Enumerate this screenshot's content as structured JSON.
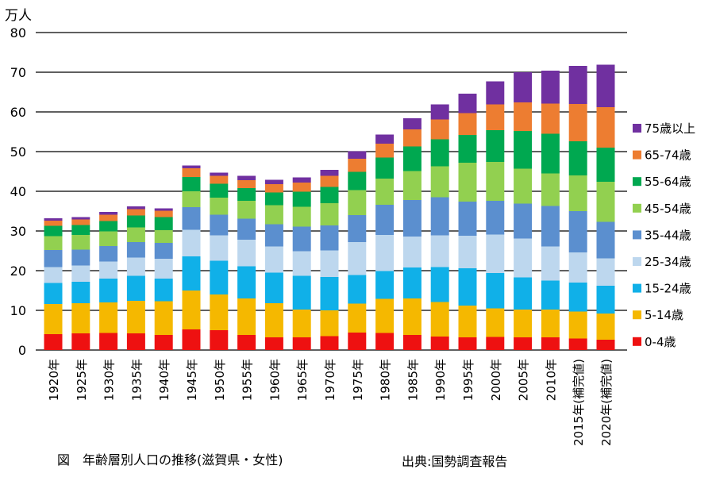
{
  "chart_data": {
    "type": "bar",
    "stacked": true,
    "title": "",
    "ylabel": "万人",
    "xlabel": "",
    "ylim": [
      0,
      80
    ],
    "yticks": [
      0,
      10,
      20,
      30,
      40,
      50,
      60,
      70,
      80
    ],
    "grid": true,
    "legend_position": "right",
    "categories": [
      "1920年",
      "1925年",
      "1930年",
      "1935年",
      "1940年",
      "1945年",
      "1950年",
      "1955年",
      "1960年",
      "1965年",
      "1970年",
      "1975年",
      "1980年",
      "1985年",
      "1990年",
      "1995年",
      "2000年",
      "2005年",
      "2010年",
      "2015年(補完値)",
      "2020年(補完値)"
    ],
    "series": [
      {
        "name": "0-4歳",
        "color": "#ee1111",
        "values": [
          4.0,
          4.2,
          4.3,
          4.2,
          3.8,
          5.2,
          5.0,
          3.8,
          3.2,
          3.2,
          3.5,
          4.4,
          4.3,
          3.8,
          3.4,
          3.2,
          3.3,
          3.2,
          3.2,
          2.9,
          2.6
        ]
      },
      {
        "name": "5-14歳",
        "color": "#f5b800",
        "values": [
          7.6,
          7.6,
          7.7,
          8.2,
          8.5,
          9.8,
          9.0,
          9.2,
          8.6,
          7.0,
          6.5,
          7.3,
          8.6,
          9.2,
          8.7,
          8.0,
          7.2,
          7.0,
          7.0,
          6.8,
          6.6
        ]
      },
      {
        "name": "15-24歳",
        "color": "#10b0e8",
        "values": [
          5.3,
          5.4,
          6.0,
          6.3,
          5.7,
          8.6,
          8.5,
          8.1,
          7.7,
          8.5,
          8.4,
          7.2,
          7.0,
          7.8,
          8.8,
          9.4,
          8.9,
          8.1,
          7.3,
          7.3,
          7.0
        ]
      },
      {
        "name": "25-34歳",
        "color": "#bdd7ee",
        "values": [
          4.0,
          4.1,
          4.3,
          4.6,
          5.0,
          6.7,
          6.4,
          6.7,
          6.6,
          6.2,
          6.7,
          8.3,
          9.1,
          7.8,
          8.0,
          8.2,
          9.7,
          9.8,
          8.6,
          7.6,
          6.9
        ]
      },
      {
        "name": "35-44歳",
        "color": "#5b8fcf",
        "values": [
          4.3,
          4.0,
          3.9,
          3.9,
          4.0,
          5.7,
          5.2,
          5.3,
          5.6,
          6.2,
          6.3,
          6.8,
          7.6,
          9.2,
          9.6,
          8.6,
          8.5,
          8.8,
          10.2,
          10.4,
          9.2
        ]
      },
      {
        "name": "45-54歳",
        "color": "#92d050",
        "values": [
          3.5,
          3.7,
          3.7,
          3.7,
          3.2,
          4.0,
          4.3,
          4.5,
          4.8,
          5.0,
          5.6,
          6.3,
          6.6,
          7.3,
          7.8,
          9.8,
          9.8,
          8.8,
          8.2,
          9.0,
          10.1
        ]
      },
      {
        "name": "55-64歳",
        "color": "#00a850",
        "values": [
          2.6,
          2.5,
          2.6,
          3.0,
          3.3,
          3.6,
          3.5,
          3.2,
          3.2,
          3.8,
          4.1,
          4.6,
          5.3,
          6.2,
          6.8,
          7.0,
          8.0,
          9.5,
          10.0,
          8.6,
          8.6
        ]
      },
      {
        "name": "65-74歳",
        "color": "#ed7d31",
        "values": [
          1.3,
          1.4,
          1.6,
          1.6,
          1.6,
          2.2,
          2.0,
          2.0,
          2.1,
          2.3,
          2.8,
          3.3,
          3.5,
          4.3,
          5.0,
          5.5,
          6.5,
          7.2,
          7.6,
          9.4,
          10.2
        ]
      },
      {
        "name": "75歳以上",
        "color": "#7030a0",
        "values": [
          0.6,
          0.6,
          0.7,
          0.7,
          0.6,
          0.7,
          0.8,
          1.1,
          1.1,
          1.3,
          1.5,
          1.9,
          2.3,
          2.8,
          3.8,
          4.9,
          5.8,
          7.6,
          8.3,
          9.6,
          10.7
        ]
      }
    ]
  },
  "unit_label": "万人",
  "caption": "図　年齢層別人口の推移(滋賀県・女性)",
  "source": "出典:国勢調査報告"
}
